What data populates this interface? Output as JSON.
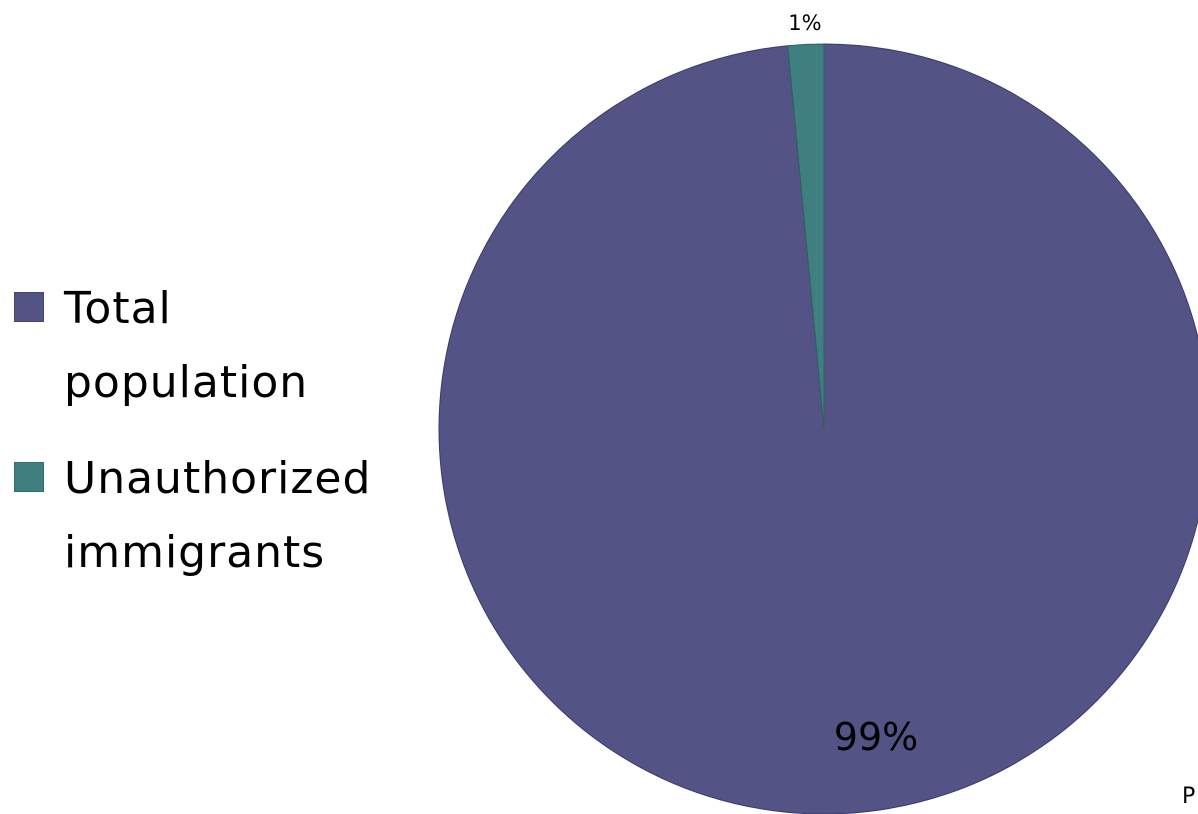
{
  "chart_data": {
    "type": "pie",
    "slices": [
      {
        "label": "Total population",
        "value": 98.5,
        "display": "99%",
        "color": "#535386"
      },
      {
        "label": "Unauthorized immigrants",
        "value": 1.5,
        "display": "1%",
        "color": "#3f7f7f"
      }
    ],
    "start_angle": "12 o'clock",
    "legend": "left",
    "title": "",
    "footer_text": "P"
  }
}
